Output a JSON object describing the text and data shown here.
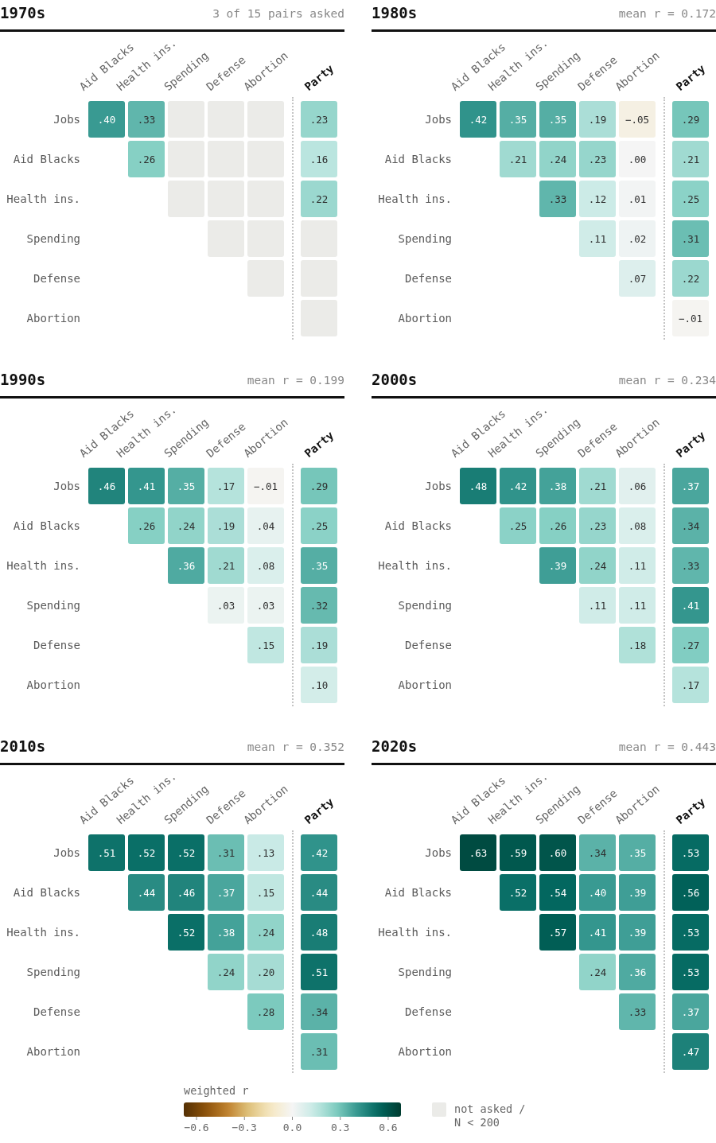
{
  "chart_data": [
    {
      "type": "heatmap",
      "title": "1970s",
      "subtitle": "3 of 15 pairs asked",
      "categories": [
        "Aid Blacks",
        "Health ins.",
        "Spending",
        "Defense",
        "Abortion"
      ],
      "y_categories": [
        "Jobs",
        "Aid Blacks",
        "Health ins.",
        "Spending",
        "Defense",
        "Abortion"
      ],
      "cells": [
        [
          0.4,
          0.33,
          null,
          null,
          null
        ],
        [
          null,
          0.26,
          null,
          null,
          null
        ],
        [
          null,
          null,
          null,
          null,
          null
        ],
        [
          null,
          null,
          null,
          null,
          null
        ],
        [
          null,
          null,
          null,
          null,
          null
        ],
        [
          null,
          null,
          null,
          null,
          null
        ]
      ],
      "cell_labels": [
        [
          ".40",
          ".33",
          null,
          null,
          null
        ],
        [
          null,
          ".26",
          null,
          null,
          null
        ],
        [
          null,
          null,
          null,
          null,
          null
        ],
        [
          null,
          null,
          null,
          null,
          null
        ],
        [
          null,
          null,
          null,
          null,
          null
        ],
        [
          null,
          null,
          null,
          null,
          null
        ]
      ]
    },
    {
      "type": "heatmap",
      "categories": [
        "Party"
      ],
      "y_categories": [
        "Jobs",
        "Aid Blacks",
        "Health ins.",
        "Spending",
        "Defense",
        "Abortion"
      ],
      "tick_labels": "x",
      "cells": [
        [
          0.23
        ],
        [
          0.16
        ],
        [
          0.22
        ],
        [
          null
        ],
        [
          null
        ],
        [
          null
        ]
      ],
      "cell_labels": [
        [
          ".23"
        ],
        [
          ".16"
        ],
        [
          ".22"
        ],
        [
          null
        ],
        [
          null
        ],
        [
          null
        ]
      ]
    },
    {
      "type": "heatmap",
      "title": "1980s",
      "subtitle": "mean r = 0.172",
      "categories": [
        "Aid Blacks",
        "Health ins.",
        "Spending",
        "Defense",
        "Abortion"
      ],
      "y_categories": [
        "Jobs",
        "Aid Blacks",
        "Health ins.",
        "Spending",
        "Defense",
        "Abortion"
      ],
      "cells": [
        [
          0.42,
          0.35,
          0.35,
          0.19,
          -0.05
        ],
        [
          null,
          0.21,
          0.24,
          0.23,
          0.0
        ],
        [
          null,
          null,
          0.33,
          0.12,
          0.01
        ],
        [
          null,
          null,
          null,
          0.11,
          0.02
        ],
        [
          null,
          null,
          null,
          null,
          0.07
        ],
        [
          null,
          null,
          null,
          null,
          null
        ]
      ],
      "cell_labels": [
        [
          ".42",
          ".35",
          ".35",
          ".19",
          "−.05"
        ],
        [
          null,
          ".21",
          ".24",
          ".23",
          ".00"
        ],
        [
          null,
          null,
          ".33",
          ".12",
          ".01"
        ],
        [
          null,
          null,
          null,
          ".11",
          ".02"
        ],
        [
          null,
          null,
          null,
          null,
          ".07"
        ],
        [
          null,
          null,
          null,
          null,
          null
        ]
      ]
    },
    {
      "type": "heatmap",
      "categories": [
        "Party"
      ],
      "y_categories": [
        "Jobs",
        "Aid Blacks",
        "Health ins.",
        "Spending",
        "Defense",
        "Abortion"
      ],
      "tick_labels": "x",
      "cells": [
        [
          0.29
        ],
        [
          0.21
        ],
        [
          0.25
        ],
        [
          0.31
        ],
        [
          0.22
        ],
        [
          -0.01
        ]
      ],
      "cell_labels": [
        [
          ".29"
        ],
        [
          ".21"
        ],
        [
          ".25"
        ],
        [
          ".31"
        ],
        [
          ".22"
        ],
        [
          "−.01"
        ]
      ]
    },
    {
      "type": "heatmap",
      "title": "1990s",
      "subtitle": "mean r = 0.199",
      "categories": [
        "Aid Blacks",
        "Health ins.",
        "Spending",
        "Defense",
        "Abortion"
      ],
      "y_categories": [
        "Jobs",
        "Aid Blacks",
        "Health ins.",
        "Spending",
        "Defense",
        "Abortion"
      ],
      "cells": [
        [
          0.46,
          0.41,
          0.35,
          0.17,
          -0.01
        ],
        [
          null,
          0.26,
          0.24,
          0.19,
          0.04
        ],
        [
          null,
          null,
          0.36,
          0.21,
          0.08
        ],
        [
          null,
          null,
          null,
          0.03,
          0.03
        ],
        [
          null,
          null,
          null,
          null,
          0.15
        ],
        [
          null,
          null,
          null,
          null,
          null
        ]
      ],
      "cell_labels": [
        [
          ".46",
          ".41",
          ".35",
          ".17",
          "−.01"
        ],
        [
          null,
          ".26",
          ".24",
          ".19",
          ".04"
        ],
        [
          null,
          null,
          ".36",
          ".21",
          ".08"
        ],
        [
          null,
          null,
          null,
          ".03",
          ".03"
        ],
        [
          null,
          null,
          null,
          null,
          ".15"
        ],
        [
          null,
          null,
          null,
          null,
          null
        ]
      ]
    },
    {
      "type": "heatmap",
      "categories": [
        "Party"
      ],
      "y_categories": [
        "Jobs",
        "Aid Blacks",
        "Health ins.",
        "Spending",
        "Defense",
        "Abortion"
      ],
      "tick_labels": "x",
      "cells": [
        [
          0.29
        ],
        [
          0.25
        ],
        [
          0.35
        ],
        [
          0.32
        ],
        [
          0.19
        ],
        [
          0.1
        ]
      ],
      "cell_labels": [
        [
          ".29"
        ],
        [
          ".25"
        ],
        [
          ".35"
        ],
        [
          ".32"
        ],
        [
          ".19"
        ],
        [
          ".10"
        ]
      ]
    },
    {
      "type": "heatmap",
      "title": "2000s",
      "subtitle": "mean r = 0.234",
      "categories": [
        "Aid Blacks",
        "Health ins.",
        "Spending",
        "Defense",
        "Abortion"
      ],
      "y_categories": [
        "Jobs",
        "Aid Blacks",
        "Health ins.",
        "Spending",
        "Defense",
        "Abortion"
      ],
      "cells": [
        [
          0.48,
          0.42,
          0.38,
          0.21,
          0.06
        ],
        [
          null,
          0.25,
          0.26,
          0.23,
          0.08
        ],
        [
          null,
          null,
          0.39,
          0.24,
          0.11
        ],
        [
          null,
          null,
          null,
          0.11,
          0.11
        ],
        [
          null,
          null,
          null,
          null,
          0.18
        ],
        [
          null,
          null,
          null,
          null,
          null
        ]
      ],
      "cell_labels": [
        [
          ".48",
          ".42",
          ".38",
          ".21",
          ".06"
        ],
        [
          null,
          ".25",
          ".26",
          ".23",
          ".08"
        ],
        [
          null,
          null,
          ".39",
          ".24",
          ".11"
        ],
        [
          null,
          null,
          null,
          ".11",
          ".11"
        ],
        [
          null,
          null,
          null,
          null,
          ".18"
        ],
        [
          null,
          null,
          null,
          null,
          null
        ]
      ]
    },
    {
      "type": "heatmap",
      "categories": [
        "Party"
      ],
      "y_categories": [
        "Jobs",
        "Aid Blacks",
        "Health ins.",
        "Spending",
        "Defense",
        "Abortion"
      ],
      "tick_labels": "x",
      "cells": [
        [
          0.37
        ],
        [
          0.34
        ],
        [
          0.33
        ],
        [
          0.41
        ],
        [
          0.27
        ],
        [
          0.17
        ]
      ],
      "cell_labels": [
        [
          ".37"
        ],
        [
          ".34"
        ],
        [
          ".33"
        ],
        [
          ".41"
        ],
        [
          ".27"
        ],
        [
          ".17"
        ]
      ]
    },
    {
      "type": "heatmap",
      "title": "2010s",
      "subtitle": "mean r = 0.352",
      "categories": [
        "Aid Blacks",
        "Health ins.",
        "Spending",
        "Defense",
        "Abortion"
      ],
      "y_categories": [
        "Jobs",
        "Aid Blacks",
        "Health ins.",
        "Spending",
        "Defense",
        "Abortion"
      ],
      "cells": [
        [
          0.51,
          0.52,
          0.52,
          0.31,
          0.13
        ],
        [
          null,
          0.44,
          0.46,
          0.37,
          0.15
        ],
        [
          null,
          null,
          0.52,
          0.38,
          0.24
        ],
        [
          null,
          null,
          null,
          0.24,
          0.2
        ],
        [
          null,
          null,
          null,
          null,
          0.28
        ],
        [
          null,
          null,
          null,
          null,
          null
        ]
      ],
      "cell_labels": [
        [
          ".51",
          ".52",
          ".52",
          ".31",
          ".13"
        ],
        [
          null,
          ".44",
          ".46",
          ".37",
          ".15"
        ],
        [
          null,
          null,
          ".52",
          ".38",
          ".24"
        ],
        [
          null,
          null,
          null,
          ".24",
          ".20"
        ],
        [
          null,
          null,
          null,
          null,
          ".28"
        ],
        [
          null,
          null,
          null,
          null,
          null
        ]
      ]
    },
    {
      "type": "heatmap",
      "categories": [
        "Party"
      ],
      "y_categories": [
        "Jobs",
        "Aid Blacks",
        "Health ins.",
        "Spending",
        "Defense",
        "Abortion"
      ],
      "tick_labels": "x",
      "cells": [
        [
          0.42
        ],
        [
          0.44
        ],
        [
          0.48
        ],
        [
          0.51
        ],
        [
          0.34
        ],
        [
          0.31
        ]
      ],
      "cell_labels": [
        [
          ".42"
        ],
        [
          ".44"
        ],
        [
          ".48"
        ],
        [
          ".51"
        ],
        [
          ".34"
        ],
        [
          ".31"
        ]
      ]
    },
    {
      "type": "heatmap",
      "title": "2020s",
      "subtitle": "mean r = 0.443",
      "categories": [
        "Aid Blacks",
        "Health ins.",
        "Spending",
        "Defense",
        "Abortion"
      ],
      "y_categories": [
        "Jobs",
        "Aid Blacks",
        "Health ins.",
        "Spending",
        "Defense",
        "Abortion"
      ],
      "cells": [
        [
          0.63,
          0.59,
          0.6,
          0.34,
          0.35
        ],
        [
          null,
          0.52,
          0.54,
          0.4,
          0.39
        ],
        [
          null,
          null,
          0.57,
          0.41,
          0.39
        ],
        [
          null,
          null,
          null,
          0.24,
          0.36
        ],
        [
          null,
          null,
          null,
          null,
          0.33
        ],
        [
          null,
          null,
          null,
          null,
          null
        ]
      ],
      "cell_labels": [
        [
          ".63",
          ".59",
          ".60",
          ".34",
          ".35"
        ],
        [
          null,
          ".52",
          ".54",
          ".40",
          ".39"
        ],
        [
          null,
          null,
          ".57",
          ".41",
          ".39"
        ],
        [
          null,
          null,
          null,
          ".24",
          ".36"
        ],
        [
          null,
          null,
          null,
          null,
          ".33"
        ],
        [
          null,
          null,
          null,
          null,
          null
        ]
      ]
    },
    {
      "type": "heatmap",
      "categories": [
        "Party"
      ],
      "y_categories": [
        "Jobs",
        "Aid Blacks",
        "Health ins.",
        "Spending",
        "Defense",
        "Abortion"
      ],
      "tick_labels": "x",
      "cells": [
        [
          0.53
        ],
        [
          0.56
        ],
        [
          0.53
        ],
        [
          0.53
        ],
        [
          0.37
        ],
        [
          0.47
        ]
      ],
      "cell_labels": [
        [
          ".53"
        ],
        [
          ".56"
        ],
        [
          ".53"
        ],
        [
          ".53"
        ],
        [
          ".37"
        ],
        [
          ".47"
        ]
      ],
      "clabel": "weighted r",
      "clim": [
        -0.68,
        0.68
      ],
      "cticks": [
        {
          "value": -0.6,
          "label": "−0.6"
        },
        {
          "value": -0.3,
          "label": "−0.3"
        },
        {
          "value": 0,
          "label": "0.0"
        },
        0.3,
        0.6
      ],
      "annotations": [
        "not asked / N < 200"
      ]
    }
  ]
}
